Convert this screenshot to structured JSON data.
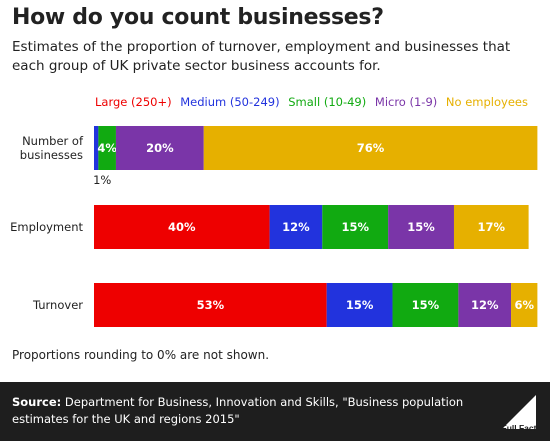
{
  "title": "How do you count businesses?",
  "subtitle": "Estimates of the proportion of turnover, employment and businesses that each group of UK private sector business accounts for.",
  "note": "Proportions rounding to 0% are not shown.",
  "source_label": "Source:",
  "source_text": "Department for Business, Innovation and Skills, \"Business population estimates for the UK and regions 2015\"",
  "logo_text": "Full Fact",
  "colors": {
    "large": "#ee0000",
    "medium": "#2233dd",
    "small": "#11aa11",
    "micro": "#7a35a8",
    "none": "#e6b000"
  },
  "chart_data": {
    "type": "bar",
    "orientation": "horizontal",
    "stacked": true,
    "categories": [
      "Number of businesses",
      "Employment",
      "Turnover"
    ],
    "category_labels": [
      [
        "Number of",
        "businesses"
      ],
      [
        "Employment"
      ],
      [
        "Turnover"
      ]
    ],
    "series": [
      {
        "name": "Large (250+)",
        "key": "large",
        "values": [
          0,
          40,
          53
        ],
        "labels": [
          "",
          "40%",
          "53%"
        ]
      },
      {
        "name": "Medium (50-249)",
        "key": "medium",
        "values": [
          1,
          12,
          15
        ],
        "labels": [
          "1%",
          "12%",
          "15%"
        ]
      },
      {
        "name": "Small (10-49)",
        "key": "small",
        "values": [
          4,
          15,
          15
        ],
        "labels": [
          "4%",
          "15%",
          "15%"
        ]
      },
      {
        "name": "Micro (1-9)",
        "key": "micro",
        "values": [
          20,
          15,
          12
        ],
        "labels": [
          "20%",
          "15%",
          "12%"
        ]
      },
      {
        "name": "No employees",
        "key": "none",
        "values": [
          76,
          17,
          6
        ],
        "labels": [
          "76%",
          "17%",
          "6%"
        ]
      }
    ],
    "xlim": [
      0,
      100
    ],
    "legend_position": "top",
    "grid": false
  }
}
